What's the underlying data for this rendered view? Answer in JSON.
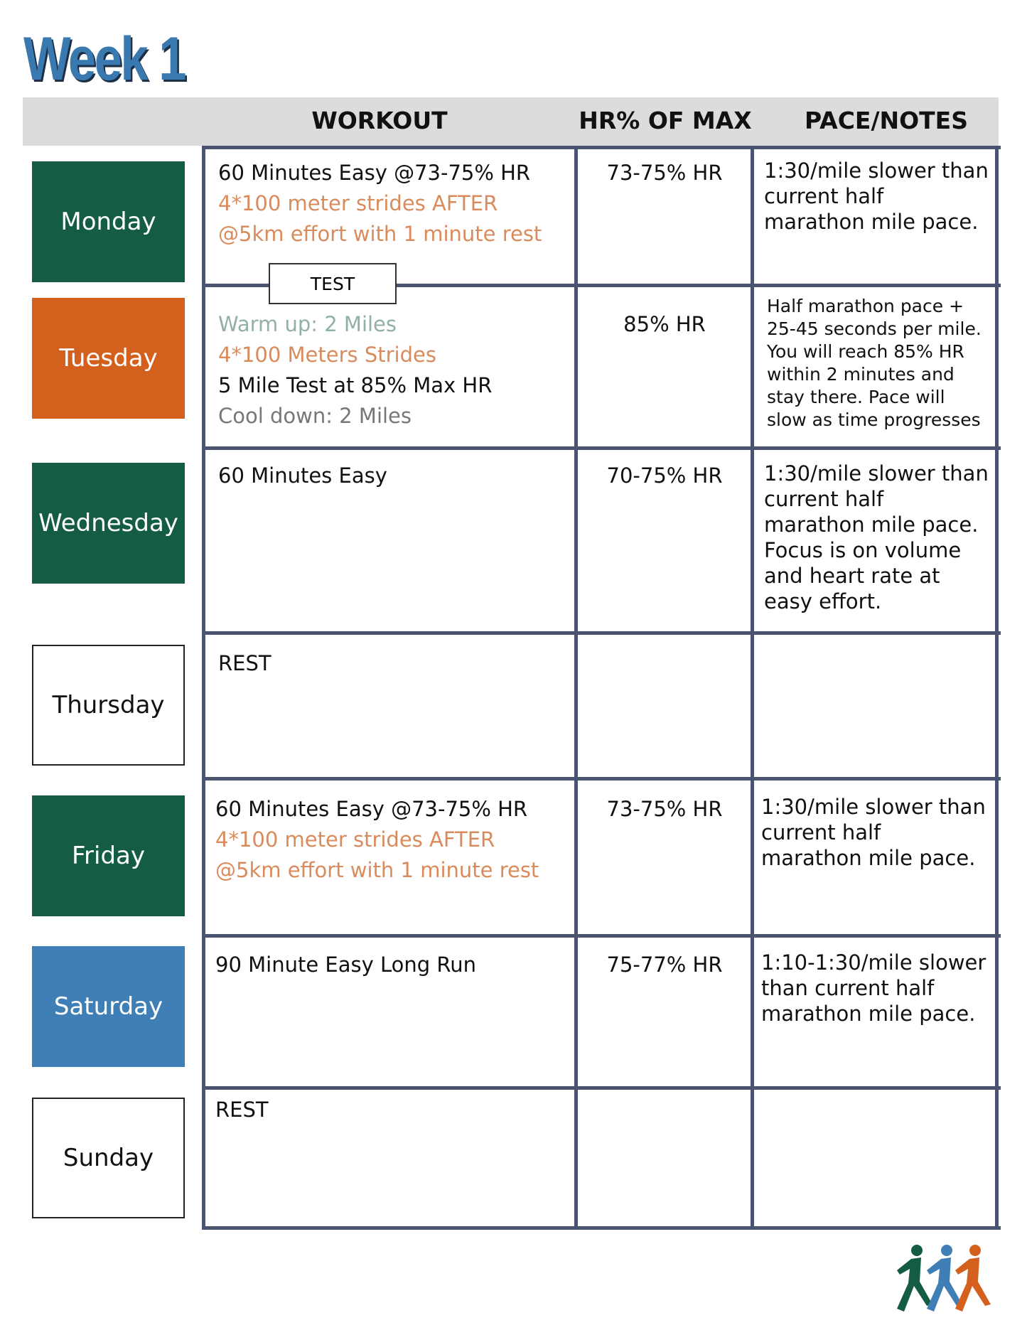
{
  "title": "Week 1",
  "header": {
    "workout": "WORKOUT",
    "hr": "HR% OF MAX",
    "notes": "PACE/NOTES"
  },
  "test_label": "TEST",
  "rows": [
    {
      "day": "Monday",
      "day_color": "#145c42",
      "workout": [
        {
          "text": "60 Minutes Easy @73-75% HR",
          "color": "#111111"
        },
        {
          "text": "4*100 meter strides AFTER",
          "color": "#d98b5c"
        },
        {
          "text": "@5km effort with 1 minute rest",
          "color": "#d98b5c"
        }
      ],
      "hr": "73-75% HR",
      "notes": [
        "1:30/mile slower than",
        "current half",
        "marathon mile pace."
      ]
    },
    {
      "day": "Tuesday",
      "day_color": "#d4601e",
      "workout": [
        {
          "text": "Warm up: 2 Miles",
          "color": "#93b0a6"
        },
        {
          "text": "4*100 Meters Strides",
          "color": "#d98b5c"
        },
        {
          "text": "5 Mile Test at 85% Max HR",
          "color": "#111111"
        },
        {
          "text": "Cool down: 2 Miles",
          "color": "#777777"
        }
      ],
      "hr": "85% HR",
      "notes": [
        "Half marathon pace +",
        "25-45 seconds per mile.",
        "You will reach 85% HR",
        "within 2 minutes and",
        "stay there. Pace will",
        "slow as time progresses"
      ]
    },
    {
      "day": "Wednesday",
      "day_color": "#145c42",
      "workout": [
        {
          "text": "60 Minutes Easy",
          "color": "#111111"
        }
      ],
      "hr": "70-75% HR",
      "notes": [
        "1:30/mile slower than",
        "current half",
        "marathon mile pace.",
        "Focus is on volume",
        "and heart rate at",
        "easy effort."
      ]
    },
    {
      "day": "Thursday",
      "day_color": "#ffffff",
      "workout": [
        {
          "text": "REST",
          "color": "#111111"
        }
      ],
      "hr": null,
      "notes": []
    },
    {
      "day": "Friday",
      "day_color": "#145c42",
      "workout": [
        {
          "text": "60 Minutes Easy @73-75% HR",
          "color": "#111111"
        },
        {
          "text": "4*100 meter strides AFTER",
          "color": "#d98b5c"
        },
        {
          "text": "@5km effort with 1 minute rest",
          "color": "#d98b5c"
        }
      ],
      "hr": "73-75% HR",
      "notes": [
        "1:30/mile slower than",
        "current half",
        "marathon mile pace."
      ]
    },
    {
      "day": "Saturday",
      "day_color": "#3f7fb5",
      "workout": [
        {
          "text": "90 Minute Easy Long Run",
          "color": "#111111"
        }
      ],
      "hr": "75-77% HR",
      "notes": [
        "1:10-1:30/mile slower",
        "than current half",
        "marathon mile pace."
      ]
    },
    {
      "day": "Sunday",
      "day_color": "#ffffff",
      "workout": [
        {
          "text": "REST",
          "color": "#111111"
        }
      ],
      "hr": null,
      "notes": []
    }
  ]
}
